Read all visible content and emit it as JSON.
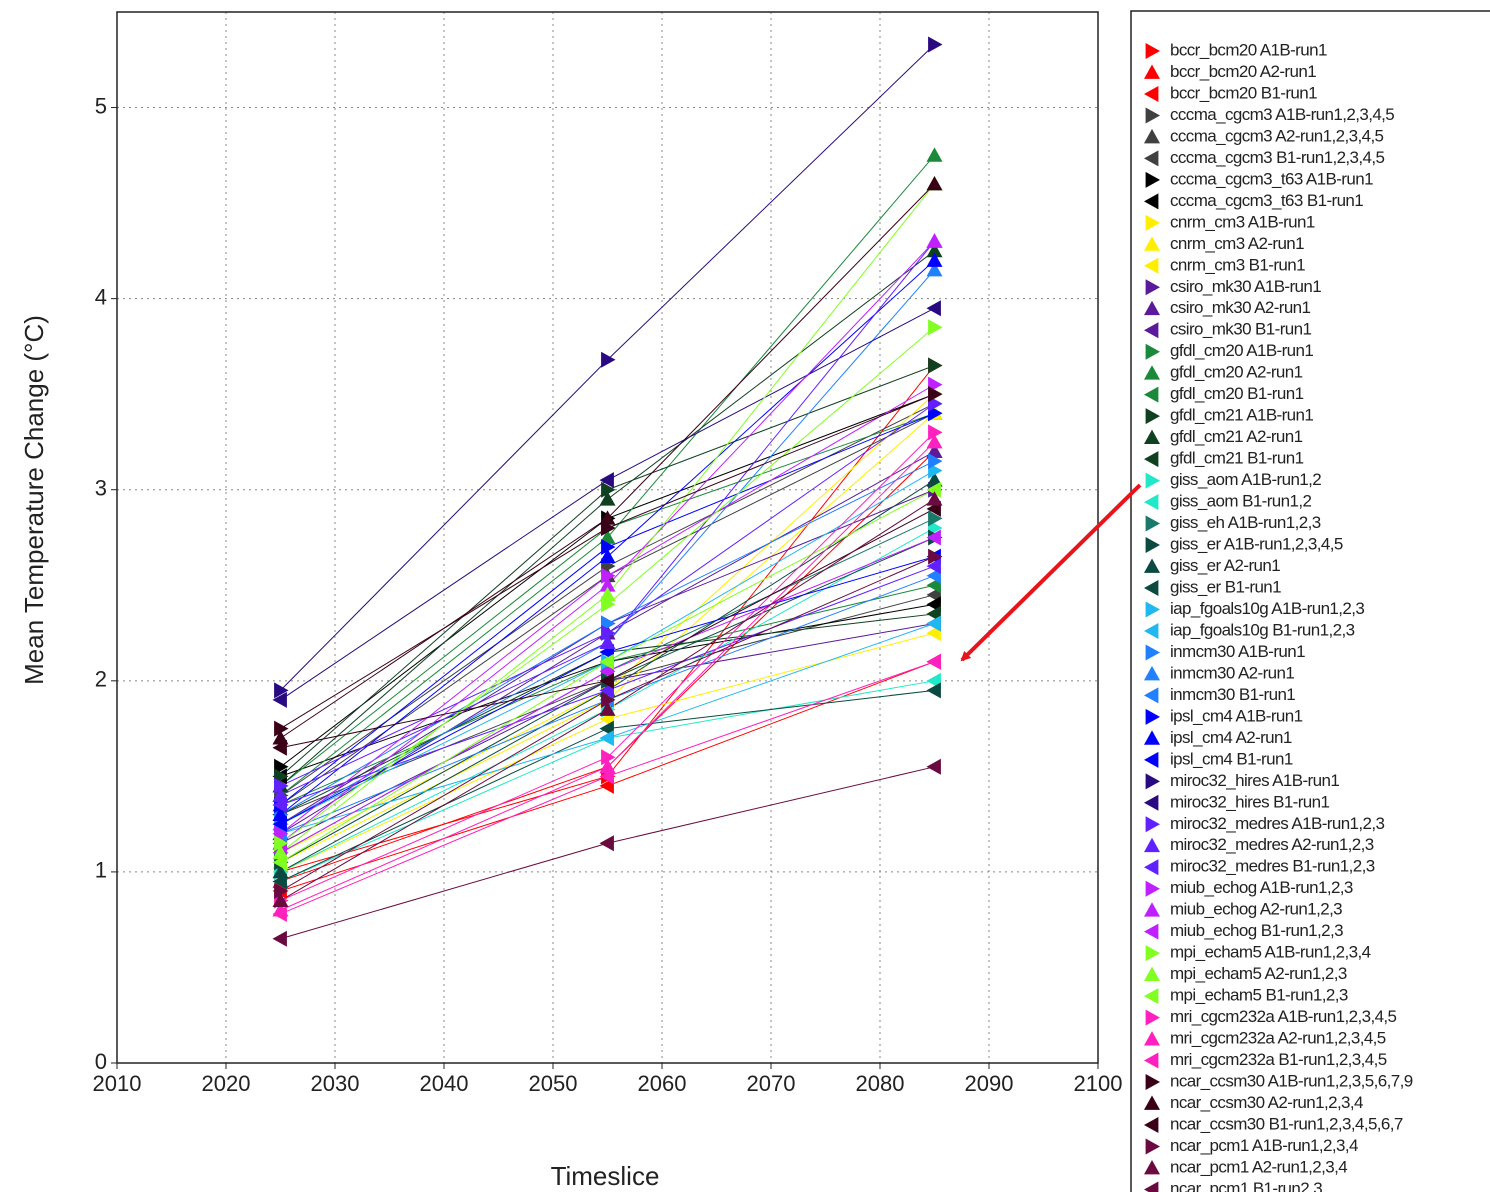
{
  "chart_data": {
    "type": "line",
    "x_label": "Timeslice",
    "y_label": "Mean Temperature Change (°C)",
    "x": [
      2025,
      2055,
      2085
    ],
    "xlim": [
      2010,
      2100
    ],
    "xticks": [
      2010,
      2020,
      2030,
      2040,
      2050,
      2060,
      2070,
      2080,
      2090,
      2100
    ],
    "ylim": [
      0,
      5.5
    ],
    "yticks": [
      0,
      1,
      2,
      3,
      4,
      5
    ],
    "grid": true,
    "series": [
      {
        "name": "bccr_bcm20 A1B-run1",
        "color": "#ff0000",
        "marker": "right",
        "values": [
          1.0,
          1.5,
          3.65
        ]
      },
      {
        "name": "bccr_bcm20 A2-run1",
        "color": "#ff0000",
        "marker": "up",
        "values": [
          0.95,
          1.55,
          3.2
        ]
      },
      {
        "name": "bccr_bcm20 B1-run1",
        "color": "#ff0000",
        "marker": "left",
        "values": [
          0.9,
          1.45,
          2.1
        ]
      },
      {
        "name": "cccma_cgcm3 A1B-run1,2,3,4,5",
        "color": "#404040",
        "marker": "right",
        "values": [
          1.4,
          2.6,
          3.45
        ]
      },
      {
        "name": "cccma_cgcm3 A2-run1,2,3,4,5",
        "color": "#404040",
        "marker": "up",
        "values": [
          1.35,
          2.55,
          3.4
        ]
      },
      {
        "name": "cccma_cgcm3 B1-run1,2,3,4,5",
        "color": "#404040",
        "marker": "left",
        "values": [
          1.3,
          2.0,
          2.45
        ]
      },
      {
        "name": "cccma_cgcm3_t63 A1B-run1",
        "color": "#000000",
        "marker": "right",
        "values": [
          1.55,
          2.85,
          3.5
        ]
      },
      {
        "name": "cccma_cgcm3_t63 B1-run1",
        "color": "#000000",
        "marker": "left",
        "values": [
          1.5,
          2.1,
          2.4
        ]
      },
      {
        "name": "cnrm_cm3 A1B-run1",
        "color": "#ffee00",
        "marker": "right",
        "values": [
          1.1,
          1.95,
          3.5
        ]
      },
      {
        "name": "cnrm_cm3 A2-run1",
        "color": "#ffee00",
        "marker": "up",
        "values": [
          1.05,
          1.9,
          3.4
        ]
      },
      {
        "name": "cnrm_cm3 B1-run1",
        "color": "#ffee00",
        "marker": "left",
        "values": [
          1.0,
          1.8,
          2.25
        ]
      },
      {
        "name": "csiro_mk30 A1B-run1",
        "color": "#5a1a9a",
        "marker": "right",
        "values": [
          1.25,
          2.3,
          3.0
        ]
      },
      {
        "name": "csiro_mk30 A2-run1",
        "color": "#5a1a9a",
        "marker": "up",
        "values": [
          1.2,
          2.25,
          3.2
        ]
      },
      {
        "name": "csiro_mk30 B1-run1",
        "color": "#5a1a9a",
        "marker": "left",
        "values": [
          1.15,
          2.0,
          2.3
        ]
      },
      {
        "name": "gfdl_cm20 A1B-run1",
        "color": "#1a8a3a",
        "marker": "right",
        "values": [
          1.45,
          2.8,
          3.4
        ]
      },
      {
        "name": "gfdl_cm20 A2-run1",
        "color": "#1a8a3a",
        "marker": "up",
        "values": [
          1.4,
          2.75,
          4.75
        ]
      },
      {
        "name": "gfdl_cm20 B1-run1",
        "color": "#1a8a3a",
        "marker": "left",
        "values": [
          1.35,
          2.1,
          2.5
        ]
      },
      {
        "name": "gfdl_cm21 A1B-run1",
        "color": "#0f4020",
        "marker": "right",
        "values": [
          1.5,
          3.0,
          3.65
        ]
      },
      {
        "name": "gfdl_cm21 A2-run1",
        "color": "#0f4020",
        "marker": "up",
        "values": [
          1.45,
          2.95,
          4.25
        ]
      },
      {
        "name": "gfdl_cm21 B1-run1",
        "color": "#0f4020",
        "marker": "left",
        "values": [
          1.3,
          2.15,
          2.35
        ]
      },
      {
        "name": "giss_aom A1B-run1,2",
        "color": "#20e8c8",
        "marker": "right",
        "values": [
          1.0,
          1.85,
          2.8
        ]
      },
      {
        "name": "giss_aom B1-run1,2",
        "color": "#20e8c8",
        "marker": "left",
        "values": [
          0.95,
          1.7,
          2.0
        ]
      },
      {
        "name": "giss_eh A1B-run1,2,3",
        "color": "#1a7a6a",
        "marker": "right",
        "values": [
          1.1,
          2.05,
          2.85
        ]
      },
      {
        "name": "giss_er A1B-run1,2,3,4,5",
        "color": "#0a4a40",
        "marker": "right",
        "values": [
          1.05,
          2.0,
          2.75
        ]
      },
      {
        "name": "giss_er A2-run1",
        "color": "#0a4a40",
        "marker": "up",
        "values": [
          1.0,
          1.95,
          3.05
        ]
      },
      {
        "name": "giss_er B1-run1",
        "color": "#0a4a40",
        "marker": "left",
        "values": [
          0.95,
          1.75,
          1.95
        ]
      },
      {
        "name": "iap_fgoals10g A1B-run1,2,3",
        "color": "#20b8f0",
        "marker": "right",
        "values": [
          1.25,
          2.1,
          3.1
        ]
      },
      {
        "name": "iap_fgoals10g B1-run1,2,3",
        "color": "#20b8f0",
        "marker": "left",
        "values": [
          1.2,
          1.7,
          2.3
        ]
      },
      {
        "name": "inmcm30 A1B-run1",
        "color": "#2080ff",
        "marker": "right",
        "values": [
          1.3,
          2.3,
          3.15
        ]
      },
      {
        "name": "inmcm30 A2-run1",
        "color": "#2080ff",
        "marker": "up",
        "values": [
          1.25,
          2.2,
          4.15
        ]
      },
      {
        "name": "inmcm30 B1-run1",
        "color": "#2080ff",
        "marker": "left",
        "values": [
          1.2,
          1.9,
          2.55
        ]
      },
      {
        "name": "ipsl_cm4 A1B-run1",
        "color": "#0000ff",
        "marker": "right",
        "values": [
          1.35,
          2.7,
          3.4
        ]
      },
      {
        "name": "ipsl_cm4 A2-run1",
        "color": "#0000ff",
        "marker": "up",
        "values": [
          1.3,
          2.65,
          4.2
        ]
      },
      {
        "name": "ipsl_cm4 B1-run1",
        "color": "#0000ff",
        "marker": "left",
        "values": [
          1.25,
          2.15,
          2.65
        ]
      },
      {
        "name": "miroc32_hires A1B-run1",
        "color": "#2a0a80",
        "marker": "right",
        "values": [
          1.95,
          3.68,
          5.33
        ]
      },
      {
        "name": "miroc32_hires B1-run1",
        "color": "#2a0a80",
        "marker": "left",
        "values": [
          1.9,
          3.05,
          3.95
        ]
      },
      {
        "name": "miroc32_medres A1B-run1,2,3",
        "color": "#6020ff",
        "marker": "right",
        "values": [
          1.45,
          2.25,
          3.45
        ]
      },
      {
        "name": "miroc32_medres A2-run1,2,3",
        "color": "#6020ff",
        "marker": "up",
        "values": [
          1.4,
          2.2,
          4.3
        ]
      },
      {
        "name": "miroc32_medres B1-run1,2,3",
        "color": "#6020ff",
        "marker": "left",
        "values": [
          1.35,
          1.95,
          2.6
        ]
      },
      {
        "name": "miub_echog A1B-run1,2,3",
        "color": "#c020ff",
        "marker": "right",
        "values": [
          1.2,
          2.55,
          3.55
        ]
      },
      {
        "name": "miub_echog A2-run1,2,3",
        "color": "#c020ff",
        "marker": "up",
        "values": [
          1.15,
          2.5,
          4.3
        ]
      },
      {
        "name": "miub_echog B1-run1,2,3",
        "color": "#c020ff",
        "marker": "left",
        "values": [
          1.1,
          2.05,
          2.75
        ]
      },
      {
        "name": "mpi_echam5 A1B-run1,2,3,4",
        "color": "#80ff20",
        "marker": "right",
        "values": [
          1.15,
          2.4,
          3.85
        ]
      },
      {
        "name": "mpi_echam5 A2-run1,2,3",
        "color": "#80ff20",
        "marker": "up",
        "values": [
          1.1,
          2.45,
          4.6
        ]
      },
      {
        "name": "mpi_echam5 B1-run1,2,3",
        "color": "#80ff20",
        "marker": "left",
        "values": [
          1.05,
          2.1,
          3.0
        ]
      },
      {
        "name": "mri_cgcm232a A1B-run1,2,3,4,5",
        "color": "#ff20c0",
        "marker": "right",
        "values": [
          0.85,
          1.6,
          3.3
        ]
      },
      {
        "name": "mri_cgcm232a A2-run1,2,3,4,5",
        "color": "#ff20c0",
        "marker": "up",
        "values": [
          0.8,
          1.55,
          3.25
        ]
      },
      {
        "name": "mri_cgcm232a B1-run1,2,3,4,5",
        "color": "#ff20c0",
        "marker": "left",
        "values": [
          0.78,
          1.5,
          2.1
        ]
      },
      {
        "name": "ncar_ccsm30 A1B-run1,2,3,5,6,7,9",
        "color": "#3a0018",
        "marker": "right",
        "values": [
          1.75,
          2.8,
          3.5
        ]
      },
      {
        "name": "ncar_ccsm30 A2-run1,2,3,4",
        "color": "#3a0018",
        "marker": "up",
        "values": [
          1.7,
          2.85,
          4.6
        ]
      },
      {
        "name": "ncar_ccsm30 B1-run1,2,3,4,5,6,7",
        "color": "#3a0018",
        "marker": "left",
        "values": [
          1.65,
          2.0,
          2.9
        ]
      },
      {
        "name": "ncar_pcm1 A1B-run1,2,3,4",
        "color": "#6a0a40",
        "marker": "right",
        "values": [
          0.9,
          1.9,
          2.65
        ]
      },
      {
        "name": "ncar_pcm1 A2-run1,2,3,4",
        "color": "#6a0a40",
        "marker": "up",
        "values": [
          0.85,
          1.85,
          2.95
        ]
      },
      {
        "name": "ncar_pcm1 B1-run2,3",
        "color": "#6a0a40",
        "marker": "left",
        "values": [
          0.65,
          1.15,
          1.55
        ]
      }
    ]
  }
}
